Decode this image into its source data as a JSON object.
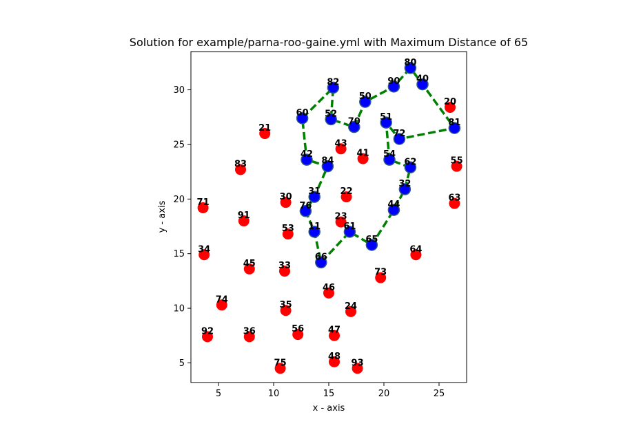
{
  "chart_data": {
    "type": "scatter",
    "title": "Solution for example/parna-roo-gaine.yml with Maximum Distance of 65",
    "xlabel": "x - axis",
    "ylabel": "y - axis",
    "xlim": [
      2.5,
      27.5
    ],
    "ylim": [
      3.2,
      33.5
    ],
    "xticks": [
      5,
      10,
      15,
      20,
      25
    ],
    "yticks": [
      5,
      10,
      15,
      20,
      25,
      30
    ],
    "colors": {
      "visited": "#0000ff",
      "unvisited": "#ff0000",
      "route": "#008000",
      "edge": "#2e5a82"
    },
    "points": [
      {
        "id": "80",
        "x": 22.4,
        "y": 32.0,
        "visited": true
      },
      {
        "id": "90",
        "x": 20.9,
        "y": 30.3,
        "visited": true
      },
      {
        "id": "40",
        "x": 23.5,
        "y": 30.5,
        "visited": true
      },
      {
        "id": "82",
        "x": 15.4,
        "y": 30.2,
        "visited": true
      },
      {
        "id": "50",
        "x": 18.3,
        "y": 28.9,
        "visited": true
      },
      {
        "id": "20",
        "x": 26.0,
        "y": 28.4,
        "visited": false
      },
      {
        "id": "60",
        "x": 12.6,
        "y": 27.4,
        "visited": true
      },
      {
        "id": "52",
        "x": 15.2,
        "y": 27.3,
        "visited": true
      },
      {
        "id": "70",
        "x": 17.3,
        "y": 26.6,
        "visited": true
      },
      {
        "id": "51",
        "x": 20.2,
        "y": 27.0,
        "visited": true
      },
      {
        "id": "81",
        "x": 26.4,
        "y": 26.5,
        "visited": true
      },
      {
        "id": "21",
        "x": 9.2,
        "y": 26.0,
        "visited": false
      },
      {
        "id": "72",
        "x": 21.4,
        "y": 25.5,
        "visited": true
      },
      {
        "id": "43",
        "x": 16.1,
        "y": 24.6,
        "visited": false
      },
      {
        "id": "41",
        "x": 18.1,
        "y": 23.7,
        "visited": false
      },
      {
        "id": "42",
        "x": 13.0,
        "y": 23.6,
        "visited": true
      },
      {
        "id": "54",
        "x": 20.5,
        "y": 23.6,
        "visited": true
      },
      {
        "id": "84",
        "x": 14.9,
        "y": 23.0,
        "visited": true
      },
      {
        "id": "62",
        "x": 22.4,
        "y": 22.9,
        "visited": true
      },
      {
        "id": "55",
        "x": 26.6,
        "y": 23.0,
        "visited": false
      },
      {
        "id": "83",
        "x": 7.0,
        "y": 22.7,
        "visited": false
      },
      {
        "id": "32",
        "x": 21.9,
        "y": 20.9,
        "visited": true
      },
      {
        "id": "31",
        "x": 13.7,
        "y": 20.2,
        "visited": true
      },
      {
        "id": "22",
        "x": 16.6,
        "y": 20.2,
        "visited": false
      },
      {
        "id": "30",
        "x": 11.1,
        "y": 19.7,
        "visited": false
      },
      {
        "id": "63",
        "x": 26.4,
        "y": 19.6,
        "visited": false
      },
      {
        "id": "71",
        "x": 3.6,
        "y": 19.2,
        "visited": false
      },
      {
        "id": "44",
        "x": 20.9,
        "y": 19.0,
        "visited": true
      },
      {
        "id": "76",
        "x": 12.9,
        "y": 18.9,
        "visited": true
      },
      {
        "id": "91",
        "x": 7.3,
        "y": 18.0,
        "visited": false
      },
      {
        "id": "23",
        "x": 16.1,
        "y": 17.9,
        "visited": false
      },
      {
        "id": "53",
        "x": 11.3,
        "y": 16.8,
        "visited": false
      },
      {
        "id": "11",
        "x": 13.7,
        "y": 17.0,
        "visited": true
      },
      {
        "id": "61",
        "x": 16.9,
        "y": 17.0,
        "visited": true
      },
      {
        "id": "65",
        "x": 18.9,
        "y": 15.8,
        "visited": true
      },
      {
        "id": "34",
        "x": 3.7,
        "y": 14.9,
        "visited": false
      },
      {
        "id": "64",
        "x": 22.9,
        "y": 14.9,
        "visited": false
      },
      {
        "id": "66",
        "x": 14.3,
        "y": 14.2,
        "visited": true
      },
      {
        "id": "45",
        "x": 7.8,
        "y": 13.6,
        "visited": false
      },
      {
        "id": "33",
        "x": 11.0,
        "y": 13.4,
        "visited": false
      },
      {
        "id": "73",
        "x": 19.7,
        "y": 12.8,
        "visited": false
      },
      {
        "id": "46",
        "x": 15.0,
        "y": 11.4,
        "visited": false
      },
      {
        "id": "74",
        "x": 5.3,
        "y": 10.3,
        "visited": false
      },
      {
        "id": "35",
        "x": 11.1,
        "y": 9.8,
        "visited": false
      },
      {
        "id": "24",
        "x": 17.0,
        "y": 9.7,
        "visited": false
      },
      {
        "id": "56",
        "x": 12.2,
        "y": 7.6,
        "visited": false
      },
      {
        "id": "92",
        "x": 4.0,
        "y": 7.4,
        "visited": false
      },
      {
        "id": "36",
        "x": 7.8,
        "y": 7.4,
        "visited": false
      },
      {
        "id": "47",
        "x": 15.5,
        "y": 7.5,
        "visited": false
      },
      {
        "id": "48",
        "x": 15.5,
        "y": 5.1,
        "visited": false
      },
      {
        "id": "75",
        "x": 10.6,
        "y": 4.5,
        "visited": false
      },
      {
        "id": "93",
        "x": 17.6,
        "y": 4.5,
        "visited": false
      }
    ],
    "route": [
      "80",
      "90",
      "50",
      "70",
      "52",
      "82",
      "60",
      "42",
      "84",
      "31",
      "76",
      "11",
      "66",
      "61",
      "65",
      "44",
      "32",
      "62",
      "54",
      "51",
      "72",
      "81",
      "40",
      "80"
    ],
    "grid": false
  }
}
